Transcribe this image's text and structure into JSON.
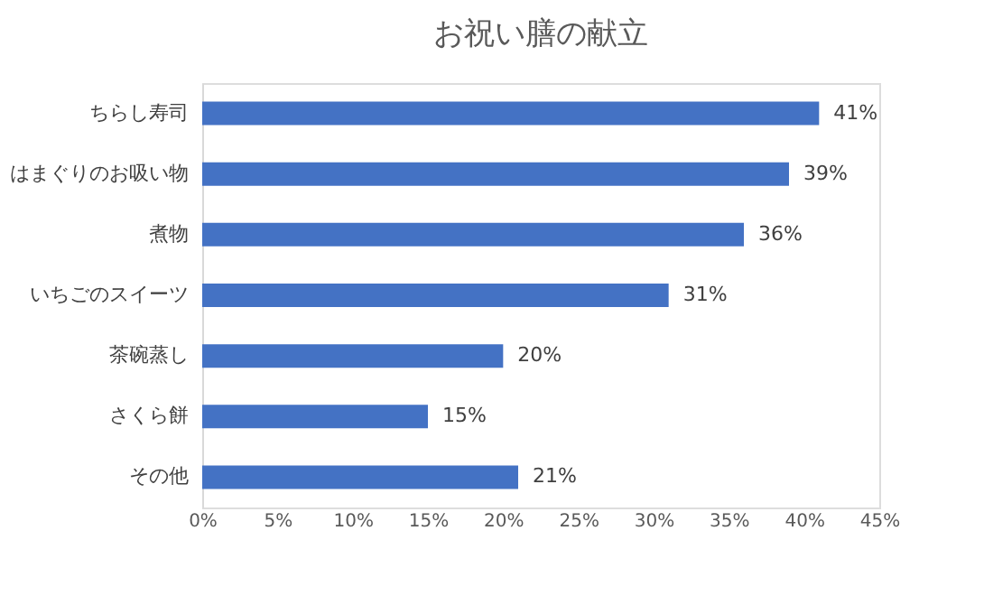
{
  "chart_data": {
    "type": "bar",
    "orientation": "horizontal",
    "title": "お祝い膳の献立",
    "categories": [
      "ちらし寿司",
      "はまぐりのお吸い物",
      "煮物",
      "いちごのスイーツ",
      "茶碗蒸し",
      "さくら餅",
      "その他"
    ],
    "values": [
      41,
      39,
      36,
      31,
      20,
      15,
      21
    ],
    "value_labels": [
      "41%",
      "39%",
      "36%",
      "31%",
      "20%",
      "15%",
      "21%"
    ],
    "color": "#4472c4",
    "xlim": [
      0,
      45
    ],
    "xticks": [
      {
        "value": 0,
        "label": "0%"
      },
      {
        "value": 5,
        "label": "5%"
      },
      {
        "value": 10,
        "label": "10%"
      },
      {
        "value": 15,
        "label": "15%"
      },
      {
        "value": 20,
        "label": "20%"
      },
      {
        "value": 25,
        "label": "25%"
      },
      {
        "value": 30,
        "label": "30%"
      },
      {
        "value": 35,
        "label": "35%"
      },
      {
        "value": 40,
        "label": "40%"
      },
      {
        "value": 45,
        "label": "45%"
      }
    ],
    "grid": false
  }
}
